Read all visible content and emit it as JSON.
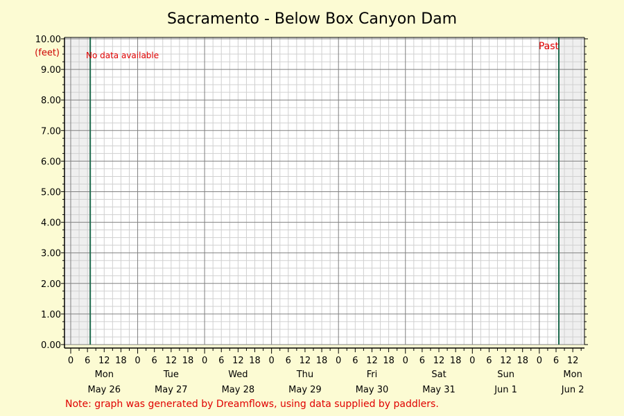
{
  "chart_data": {
    "type": "line",
    "title": "Sacramento - Below Box Canyon Dam",
    "ylabel": "(feet)",
    "ylim": [
      0,
      10
    ],
    "y_ticks": [
      "0.00",
      "1.00",
      "2.00",
      "3.00",
      "4.00",
      "5.00",
      "6.00",
      "7.00",
      "8.00",
      "9.00",
      "10.00"
    ],
    "x_start": "2025-05-26T00:00",
    "x_end": "2025-06-02T15:00",
    "hour_ticks": [
      "0",
      "6",
      "12",
      "18"
    ],
    "days": [
      {
        "weekday": "Mon",
        "date": "May 26"
      },
      {
        "weekday": "Tue",
        "date": "May 27"
      },
      {
        "weekday": "Wed",
        "date": "May 28"
      },
      {
        "weekday": "Thu",
        "date": "May 29"
      },
      {
        "weekday": "Fri",
        "date": "May 30"
      },
      {
        "weekday": "Sat",
        "date": "May 31"
      },
      {
        "weekday": "Sun",
        "date": "Jun 1"
      },
      {
        "weekday": "Mon",
        "date": "Jun 2"
      }
    ],
    "last_day_hour_ticks": [
      "0",
      "6",
      "12"
    ],
    "window_start": "2025-05-26T07:00",
    "window_end": "2025-06-02T07:00",
    "grid": true,
    "series": [],
    "annotations": {
      "no_data": "No data available",
      "past": "Past"
    },
    "note": "Note: graph was generated by Dreamflows, using data supplied by paddlers."
  },
  "colors": {
    "background": "#fcfbd3",
    "plot_area": "#ffffff",
    "shaded_region": "#efefef",
    "major_grid": "#808080",
    "minor_grid": "#d0d0d0",
    "window_line": "#1e6b4e",
    "note_text": "#e00000"
  }
}
